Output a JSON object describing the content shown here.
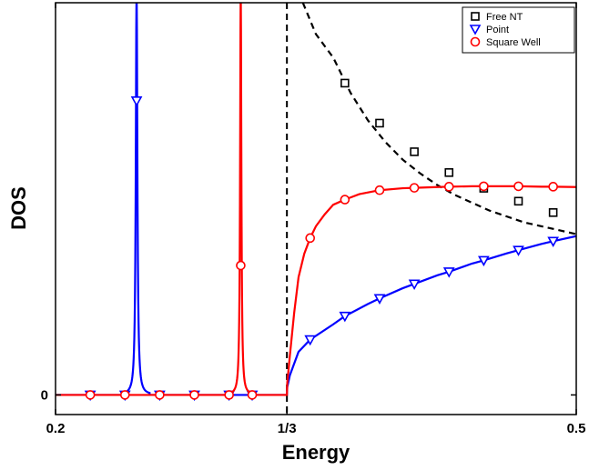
{
  "chart_data": {
    "type": "line",
    "xlabel": "Energy",
    "ylabel": "DOS",
    "xlim": [
      0.2,
      0.5
    ],
    "ylim": [
      -0.05,
      1.0
    ],
    "xticks": [
      {
        "value": 0.2,
        "label": "0.2"
      },
      {
        "value": 0.3333,
        "label": "1/3"
      },
      {
        "value": 0.5,
        "label": "0.5"
      }
    ],
    "yticks": [
      {
        "value": 0,
        "label": "0"
      }
    ],
    "grid": false,
    "legend_position": "top-right",
    "vline": {
      "x": 0.3333,
      "style": "dashed",
      "color": "#000000"
    },
    "series": [
      {
        "name": "Free NT",
        "color": "#000000",
        "line_style": "dashed",
        "marker": "square",
        "x": [
          0.3425,
          0.35,
          0.36,
          0.37,
          0.38,
          0.39,
          0.4,
          0.41,
          0.42,
          0.43,
          0.44,
          0.45,
          0.46,
          0.47,
          0.48,
          0.49,
          0.5
        ],
        "y": [
          1.0,
          0.92,
          0.86,
          0.77,
          0.7,
          0.645,
          0.6,
          0.565,
          0.535,
          0.51,
          0.49,
          0.47,
          0.455,
          0.44,
          0.43,
          0.42,
          0.41
        ],
        "markers_x": [
          0.3667,
          0.3867,
          0.4067,
          0.4267,
          0.4467,
          0.4667,
          0.4867
        ],
        "markers_y": [
          0.795,
          0.693,
          0.62,
          0.567,
          0.527,
          0.494,
          0.465
        ]
      },
      {
        "name": "Point",
        "color": "#0000ff",
        "line_style": "solid",
        "marker": "triangle-down",
        "spike_x": 0.2467,
        "spike_halfwidth": 0.0015,
        "spike_peak": 1.05,
        "x": [
          0.2,
          0.3333,
          0.3335,
          0.335,
          0.34,
          0.3467,
          0.36,
          0.3667,
          0.38,
          0.3867,
          0.4,
          0.4067,
          0.42,
          0.4267,
          0.44,
          0.4467,
          0.46,
          0.4667,
          0.48,
          0.4867,
          0.5
        ],
        "y": [
          0,
          0,
          0.02,
          0.05,
          0.11,
          0.141,
          0.18,
          0.201,
          0.232,
          0.246,
          0.272,
          0.283,
          0.305,
          0.314,
          0.335,
          0.343,
          0.361,
          0.369,
          0.385,
          0.392,
          0.405
        ],
        "markers_x": [
          0.22,
          0.24,
          0.2467,
          0.26,
          0.28,
          0.3,
          0.3133,
          0.3467,
          0.3667,
          0.3867,
          0.4067,
          0.4267,
          0.4467,
          0.4667,
          0.4867
        ],
        "markers_y": [
          0,
          0,
          0.75,
          0,
          0,
          0,
          0,
          0.141,
          0.201,
          0.246,
          0.283,
          0.314,
          0.343,
          0.369,
          0.392
        ]
      },
      {
        "name": "Square Well",
        "color": "#ff0000",
        "line_style": "solid",
        "marker": "circle",
        "spike_x": 0.3067,
        "spike_halfwidth": 0.0012,
        "spike_peak": 1.05,
        "x": [
          0.2,
          0.3333,
          0.3335,
          0.335,
          0.3375,
          0.34,
          0.3433,
          0.3467,
          0.35,
          0.355,
          0.36,
          0.3667,
          0.375,
          0.3867,
          0.4,
          0.4067,
          0.42,
          0.4267,
          0.44,
          0.4467,
          0.46,
          0.4667,
          0.48,
          0.4867,
          0.5
        ],
        "y": [
          0,
          0,
          0.03,
          0.1,
          0.21,
          0.3,
          0.36,
          0.4,
          0.43,
          0.46,
          0.485,
          0.498,
          0.512,
          0.522,
          0.527,
          0.528,
          0.53,
          0.531,
          0.532,
          0.532,
          0.532,
          0.532,
          0.531,
          0.531,
          0.53
        ],
        "markers_x": [
          0.22,
          0.24,
          0.26,
          0.28,
          0.3,
          0.3067,
          0.3133,
          0.3467,
          0.3667,
          0.3867,
          0.4067,
          0.4267,
          0.4467,
          0.4667,
          0.4867
        ],
        "markers_y": [
          0,
          0,
          0,
          0,
          0,
          0.33,
          0,
          0.4,
          0.498,
          0.522,
          0.528,
          0.531,
          0.532,
          0.532,
          0.531
        ]
      }
    ]
  }
}
